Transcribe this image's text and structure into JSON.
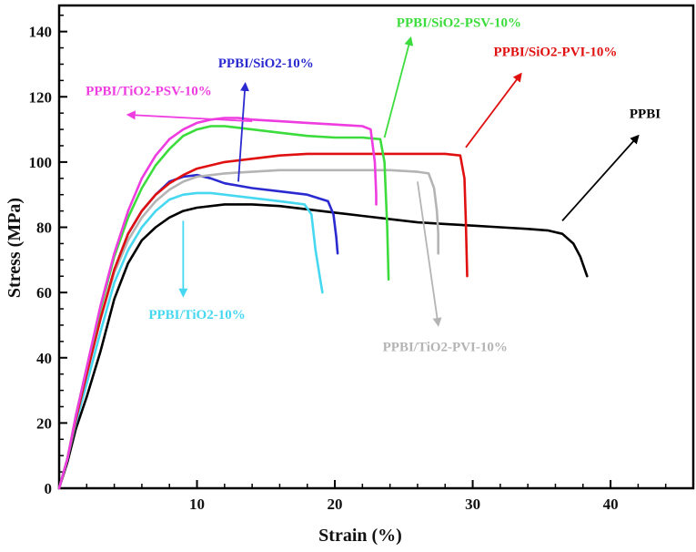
{
  "chart_data": {
    "type": "line",
    "xlabel": "Strain (%)",
    "ylabel": "Stress (MPa)",
    "xlim": [
      0,
      46
    ],
    "ylim": [
      0,
      148
    ],
    "xticks": [
      10,
      20,
      30,
      40
    ],
    "yticks": [
      0,
      20,
      40,
      60,
      80,
      100,
      120,
      140
    ],
    "grid": false,
    "legend": "none",
    "series": [
      {
        "name": "PPBI",
        "color": "#000000",
        "points": [
          [
            0,
            0
          ],
          [
            0.6,
            8
          ],
          [
            1.2,
            18
          ],
          [
            2,
            28
          ],
          [
            3,
            42
          ],
          [
            4,
            58
          ],
          [
            5,
            69
          ],
          [
            6,
            76
          ],
          [
            7,
            80
          ],
          [
            8,
            83
          ],
          [
            9,
            85
          ],
          [
            10,
            86
          ],
          [
            12,
            87
          ],
          [
            14,
            87
          ],
          [
            16,
            86.5
          ],
          [
            18,
            85.5
          ],
          [
            20,
            84.5
          ],
          [
            22,
            83.5
          ],
          [
            24,
            82.5
          ],
          [
            26,
            81.5
          ],
          [
            28,
            81
          ],
          [
            30,
            80.5
          ],
          [
            32,
            80
          ],
          [
            34,
            79.5
          ],
          [
            35.5,
            79
          ],
          [
            36.5,
            78
          ],
          [
            37.3,
            75
          ],
          [
            37.8,
            71
          ],
          [
            38.3,
            65
          ]
        ]
      },
      {
        "name": "PPBI/TiO2-10%",
        "color": "#46d8f0",
        "points": [
          [
            0,
            0
          ],
          [
            0.6,
            9
          ],
          [
            1.2,
            20
          ],
          [
            2,
            32
          ],
          [
            3,
            48
          ],
          [
            4,
            63
          ],
          [
            5,
            73
          ],
          [
            6,
            80
          ],
          [
            7,
            85
          ],
          [
            8,
            88.5
          ],
          [
            9,
            90
          ],
          [
            10,
            90.5
          ],
          [
            11,
            90.5
          ],
          [
            12,
            90
          ],
          [
            14,
            89
          ],
          [
            16,
            88
          ],
          [
            17.8,
            87
          ],
          [
            18.3,
            84
          ],
          [
            18.6,
            73
          ],
          [
            18.9,
            65
          ],
          [
            19.1,
            60
          ]
        ]
      },
      {
        "name": "PPBI/SiO2-10%",
        "color": "#2a2ad0",
        "points": [
          [
            0,
            0
          ],
          [
            0.6,
            9
          ],
          [
            1.2,
            21
          ],
          [
            2,
            35
          ],
          [
            3,
            52
          ],
          [
            4,
            67
          ],
          [
            5,
            78
          ],
          [
            6,
            85
          ],
          [
            7,
            90
          ],
          [
            8,
            94
          ],
          [
            9,
            95.5
          ],
          [
            10,
            96
          ],
          [
            11,
            95
          ],
          [
            12,
            93.5
          ],
          [
            14,
            92
          ],
          [
            16,
            91
          ],
          [
            18,
            90
          ],
          [
            19.5,
            88
          ],
          [
            19.9,
            84
          ],
          [
            20.1,
            77
          ],
          [
            20.2,
            72
          ]
        ]
      },
      {
        "name": "PPBI/TiO2-PVI-10%",
        "color": "#b4b4b4",
        "points": [
          [
            0,
            0
          ],
          [
            0.6,
            9
          ],
          [
            1.2,
            21
          ],
          [
            2,
            35
          ],
          [
            3,
            52
          ],
          [
            4,
            66
          ],
          [
            5,
            76
          ],
          [
            6,
            83
          ],
          [
            7,
            88
          ],
          [
            8,
            91.5
          ],
          [
            9,
            94
          ],
          [
            10,
            95.5
          ],
          [
            12,
            96.5
          ],
          [
            14,
            97
          ],
          [
            16,
            97.5
          ],
          [
            18,
            97.5
          ],
          [
            20,
            97.5
          ],
          [
            22,
            97.5
          ],
          [
            24,
            97.5
          ],
          [
            26,
            97
          ],
          [
            26.8,
            96.5
          ],
          [
            27.2,
            92
          ],
          [
            27.4,
            85
          ],
          [
            27.5,
            78
          ],
          [
            27.5,
            72
          ]
        ]
      },
      {
        "name": "PPBI/SiO2-PVI-10%",
        "color": "#e01010",
        "points": [
          [
            0,
            0
          ],
          [
            0.6,
            9
          ],
          [
            1.2,
            21
          ],
          [
            2,
            35
          ],
          [
            3,
            52
          ],
          [
            4,
            67
          ],
          [
            5,
            78
          ],
          [
            6,
            85
          ],
          [
            7,
            90
          ],
          [
            8,
            93.5
          ],
          [
            9,
            96
          ],
          [
            10,
            98
          ],
          [
            12,
            100
          ],
          [
            14,
            101
          ],
          [
            16,
            102
          ],
          [
            18,
            102.5
          ],
          [
            20,
            102.5
          ],
          [
            22,
            102.5
          ],
          [
            24,
            102.5
          ],
          [
            26,
            102.5
          ],
          [
            28,
            102.5
          ],
          [
            29.1,
            102
          ],
          [
            29.4,
            95
          ],
          [
            29.5,
            82
          ],
          [
            29.6,
            65
          ]
        ]
      },
      {
        "name": "PPBI/SiO2-PSV-10%",
        "color": "#3cdc3c",
        "points": [
          [
            0,
            0
          ],
          [
            0.6,
            9
          ],
          [
            1.2,
            22
          ],
          [
            2,
            37
          ],
          [
            3,
            55
          ],
          [
            4,
            71
          ],
          [
            5,
            83
          ],
          [
            6,
            92
          ],
          [
            7,
            99
          ],
          [
            8,
            104
          ],
          [
            9,
            108
          ],
          [
            10,
            110
          ],
          [
            11,
            111
          ],
          [
            12,
            111
          ],
          [
            14,
            110
          ],
          [
            16,
            109
          ],
          [
            18,
            108
          ],
          [
            20,
            107.5
          ],
          [
            22,
            107.5
          ],
          [
            23.3,
            107
          ],
          [
            23.6,
            100
          ],
          [
            23.8,
            80
          ],
          [
            23.9,
            64
          ]
        ]
      },
      {
        "name": "PPBI/TiO2-PSV-10%",
        "color": "#ee3ce0",
        "points": [
          [
            0,
            0
          ],
          [
            0.6,
            9
          ],
          [
            1.2,
            22
          ],
          [
            2,
            37
          ],
          [
            3,
            56
          ],
          [
            4,
            72
          ],
          [
            5,
            85
          ],
          [
            6,
            95
          ],
          [
            7,
            102
          ],
          [
            8,
            107
          ],
          [
            9,
            110
          ],
          [
            10,
            112
          ],
          [
            11,
            113
          ],
          [
            12,
            113.5
          ],
          [
            13,
            113.5
          ],
          [
            14,
            113
          ],
          [
            16,
            112.5
          ],
          [
            18,
            112
          ],
          [
            20,
            111.5
          ],
          [
            22,
            111
          ],
          [
            22.6,
            110
          ],
          [
            22.9,
            100
          ],
          [
            23,
            90
          ],
          [
            23,
            87
          ]
        ]
      }
    ],
    "annotations": [
      {
        "text": "PPBI/SiO2-PSV-10%",
        "color": "#3cdc3c",
        "label_at": [
          29,
          141.5
        ],
        "arrow_from": [
          23.6,
          107.5
        ],
        "arrow_to": [
          25.5,
          138
        ]
      },
      {
        "text": "PPBI/SiO2-10%",
        "color": "#2a2ad0",
        "label_at": [
          15,
          129
        ],
        "arrow_from": [
          13,
          94
        ],
        "arrow_to": [
          13.5,
          124
        ]
      },
      {
        "text": "PPBI/SiO2-PVI-10%",
        "color": "#e01010",
        "label_at": [
          36,
          132.5
        ],
        "arrow_from": [
          29.5,
          104.5
        ],
        "arrow_to": [
          33.5,
          127
        ]
      },
      {
        "text": "PPBI/TiO2-PSV-10%",
        "color": "#ee3ce0",
        "label_at": [
          6.5,
          120.5
        ],
        "arrow_from": [
          14,
          112.5
        ],
        "arrow_to": [
          5,
          114.5
        ]
      },
      {
        "text": "PPBI",
        "color": "#000000",
        "label_at": [
          42.5,
          113.5
        ],
        "arrow_from": [
          36.5,
          82
        ],
        "arrow_to": [
          42,
          108
        ]
      },
      {
        "text": "PPBI/TiO2-10%",
        "color": "#46d8f0",
        "label_at": [
          10,
          52
        ],
        "arrow_from": [
          9,
          82
        ],
        "arrow_to": [
          9,
          59
        ]
      },
      {
        "text": "PPBI/TiO2-PVI-10%",
        "color": "#b4b4b4",
        "label_at": [
          28,
          42
        ],
        "arrow_from": [
          26,
          94
        ],
        "arrow_to": [
          27.5,
          50
        ]
      }
    ]
  }
}
